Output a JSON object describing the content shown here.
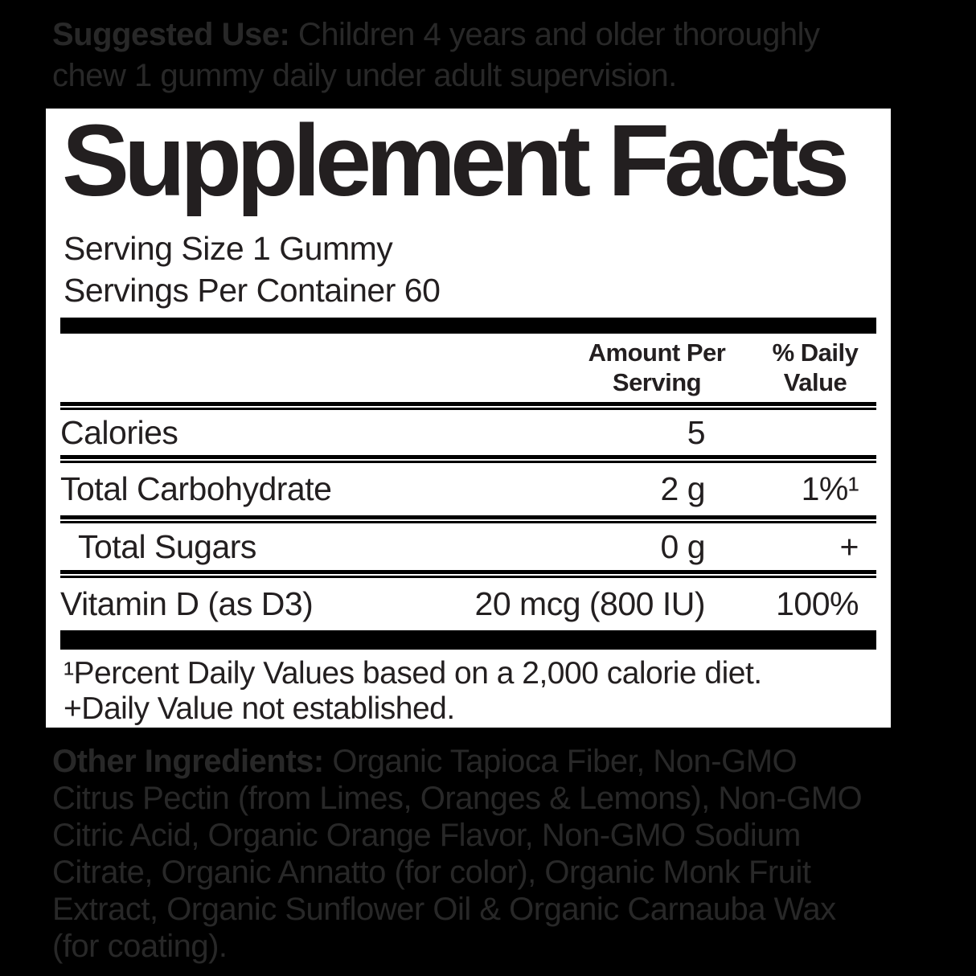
{
  "suggested_use": {
    "label": "Suggested Use:",
    "line1_rest": "Children 4 years and older thoroughly",
    "line2": "chew 1 gummy daily under adult supervision.",
    "full_text": "Suggested Use: Children 4 years and older thoroughly chew 1 gummy daily under adult supervision."
  },
  "panel": {
    "title": "Supplement Facts",
    "serving_size": "Serving Size 1 Gummy",
    "servings_per_container": "Servings Per Container 60",
    "columns": {
      "amount_header": "Amount Per Serving",
      "dv_header": "% Daily Value"
    },
    "rows": [
      {
        "name": "Calories",
        "amount": "5",
        "dv": ""
      },
      {
        "name": "Total Carbohydrate",
        "amount": "2 g",
        "dv": "1%¹"
      },
      {
        "name": "Total Sugars",
        "amount": "0 g",
        "dv": "+"
      },
      {
        "name": "Vitamin D (as D3)",
        "amount": "20 mcg (800 IU)",
        "dv": "100%"
      }
    ],
    "footnotes": {
      "line1": "¹Percent Daily Values based on a 2,000 calorie diet.",
      "line2": "+Daily Value not established."
    }
  },
  "other_ingredients": {
    "label": "Other Ingredients:",
    "line1_rest": "Organic Tapioca Fiber, Non-GMO",
    "lines": [
      "Citrus Pectin (from Limes, Oranges & Lemons), Non-GMO",
      "Citric Acid, Organic Orange Flavor, Non-GMO Sodium",
      "Citrate, Organic Annatto (for color), Organic Monk Fruit",
      "Extract, Organic Sunflower Oil & Organic Carnauba Wax",
      "(for coating)."
    ],
    "full_text": "Other Ingredients: Organic Tapioca Fiber, Non-GMO Citrus Pectin (from Limes, Oranges & Lemons), Non-GMO Citric Acid, Organic Orange Flavor, Non-GMO Sodium Citrate, Organic Annatto (for color), Organic Monk Fruit Extract, Organic Sunflower Oil & Organic Carnauba Wax (for coating)."
  },
  "colors": {
    "background": "#000000",
    "panel_background": "#ffffff",
    "panel_text": "#231f20",
    "dim_text": "#282828"
  }
}
